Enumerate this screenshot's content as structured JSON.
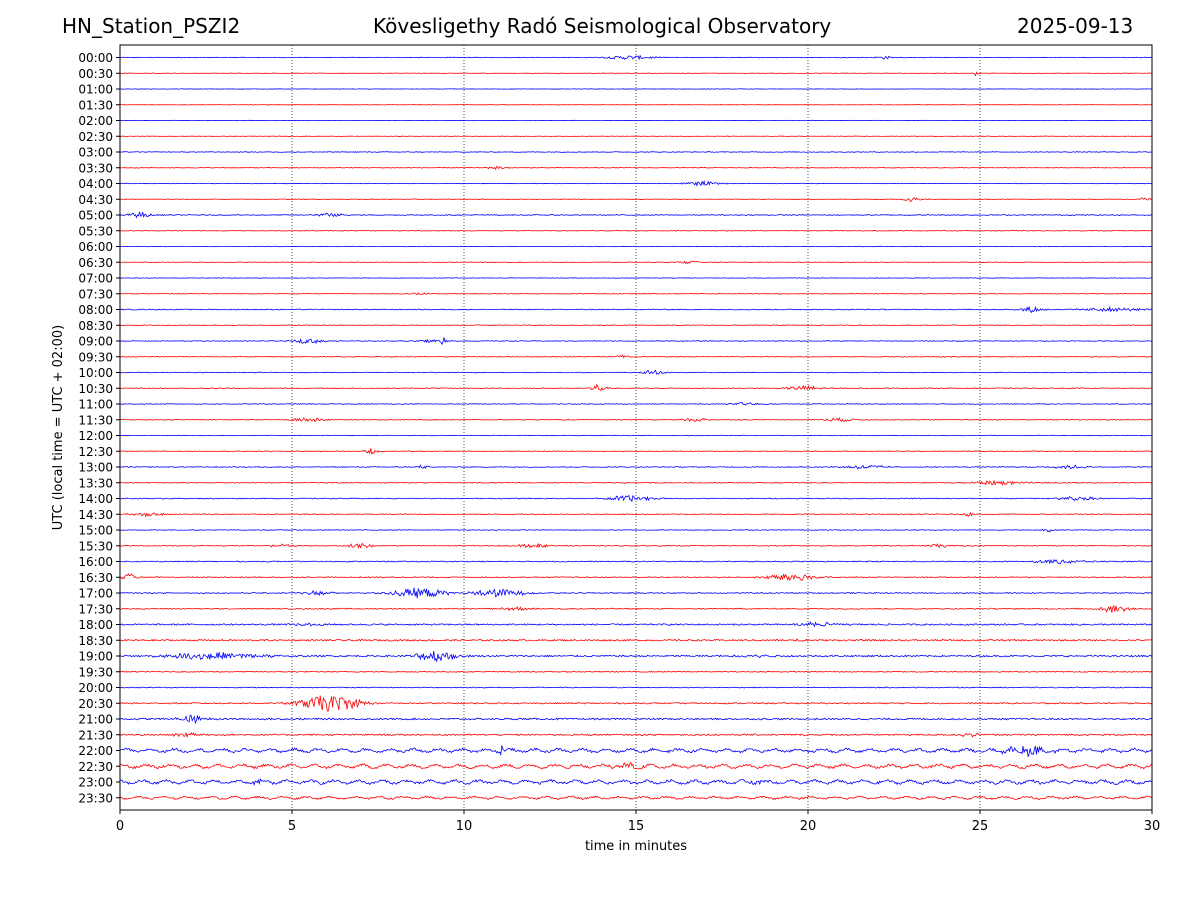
{
  "header": {
    "station": "HN_Station_PSZI2",
    "observatory": "Kövesligethy Radó Seismological Observatory",
    "date": "2025-09-13"
  },
  "chart_data": {
    "type": "line",
    "title": "Kövesligethy Radó Seismological Observatory",
    "xlabel": "time in minutes",
    "ylabel": "UTC (local time = UTC + 02:00)",
    "xlim": [
      0,
      30
    ],
    "x_ticks": [
      "0",
      "5",
      "10",
      "15",
      "20",
      "25",
      "30"
    ],
    "x_tick_values": [
      0,
      5,
      10,
      15,
      20,
      25,
      30
    ],
    "vertical_gridlines_at": [
      5,
      10,
      15,
      20,
      25
    ],
    "grid": "vertical dotted",
    "trace_colors": [
      "#0000ff",
      "#ff0000"
    ],
    "rows": [
      "00:00",
      "00:30",
      "01:00",
      "01:30",
      "02:00",
      "02:30",
      "03:00",
      "03:30",
      "04:00",
      "04:30",
      "05:00",
      "05:30",
      "06:00",
      "06:30",
      "07:00",
      "07:30",
      "08:00",
      "08:30",
      "09:00",
      "09:30",
      "10:00",
      "10:30",
      "11:00",
      "11:30",
      "12:00",
      "12:30",
      "13:00",
      "13:30",
      "14:00",
      "14:30",
      "15:00",
      "15:30",
      "16:00",
      "16:30",
      "17:00",
      "17:30",
      "18:00",
      "18:30",
      "19:00",
      "19:30",
      "20:00",
      "20:30",
      "21:00",
      "21:30",
      "22:00",
      "22:30",
      "23:00",
      "23:30"
    ],
    "noise_level": [
      0.6,
      0.5,
      0.4,
      0.4,
      0.4,
      0.4,
      0.7,
      0.6,
      0.5,
      0.6,
      0.9,
      0.6,
      0.5,
      0.6,
      0.5,
      0.6,
      0.9,
      0.7,
      0.7,
      0.7,
      0.7,
      0.8,
      0.7,
      0.7,
      0.6,
      0.7,
      0.8,
      0.8,
      0.9,
      0.9,
      0.7,
      0.9,
      1.0,
      1.0,
      1.0,
      1.1,
      1.5,
      1.6,
      1.6,
      1.0,
      0.9,
      1.3,
      1.6,
      1.5,
      2.2,
      2.3,
      2.3,
      1.6
    ],
    "events": [
      {
        "row": 0,
        "t": 14.8,
        "dur": 1.2,
        "amp": 2.0
      },
      {
        "row": 0,
        "t": 22.2,
        "dur": 0.5,
        "amp": 1.5
      },
      {
        "row": 1,
        "t": 24.9,
        "dur": 0.1,
        "amp": 3.0
      },
      {
        "row": 7,
        "t": 11.0,
        "dur": 0.5,
        "amp": 2.0
      },
      {
        "row": 8,
        "t": 16.9,
        "dur": 1.0,
        "amp": 2.0
      },
      {
        "row": 9,
        "t": 23.0,
        "dur": 0.4,
        "amp": 2.5
      },
      {
        "row": 9,
        "t": 29.8,
        "dur": 0.3,
        "amp": 2.0
      },
      {
        "row": 10,
        "t": 0.6,
        "dur": 0.6,
        "amp": 3.0
      },
      {
        "row": 10,
        "t": 6.1,
        "dur": 0.7,
        "amp": 2.0
      },
      {
        "row": 13,
        "t": 16.5,
        "dur": 0.5,
        "amp": 1.5
      },
      {
        "row": 15,
        "t": 8.7,
        "dur": 0.4,
        "amp": 1.5
      },
      {
        "row": 16,
        "t": 26.5,
        "dur": 0.6,
        "amp": 3.0
      },
      {
        "row": 16,
        "t": 28.8,
        "dur": 1.5,
        "amp": 2.0
      },
      {
        "row": 18,
        "t": 5.5,
        "dur": 0.8,
        "amp": 2.5
      },
      {
        "row": 18,
        "t": 9.4,
        "dur": 0.1,
        "amp": 7.0
      },
      {
        "row": 18,
        "t": 9.0,
        "dur": 0.8,
        "amp": 1.5
      },
      {
        "row": 19,
        "t": 14.6,
        "dur": 0.4,
        "amp": 2.0
      },
      {
        "row": 20,
        "t": 15.5,
        "dur": 0.7,
        "amp": 2.0
      },
      {
        "row": 21,
        "t": 13.9,
        "dur": 0.4,
        "amp": 4.0
      },
      {
        "row": 21,
        "t": 19.9,
        "dur": 1.0,
        "amp": 2.5
      },
      {
        "row": 22,
        "t": 18.2,
        "dur": 0.7,
        "amp": 1.5
      },
      {
        "row": 23,
        "t": 5.5,
        "dur": 1.0,
        "amp": 2.0
      },
      {
        "row": 23,
        "t": 16.7,
        "dur": 0.6,
        "amp": 2.5
      },
      {
        "row": 23,
        "t": 20.9,
        "dur": 0.7,
        "amp": 2.0
      },
      {
        "row": 25,
        "t": 7.3,
        "dur": 0.4,
        "amp": 3.0
      },
      {
        "row": 26,
        "t": 8.8,
        "dur": 0.3,
        "amp": 1.8
      },
      {
        "row": 26,
        "t": 21.7,
        "dur": 1.0,
        "amp": 2.0
      },
      {
        "row": 26,
        "t": 27.6,
        "dur": 0.8,
        "amp": 2.0
      },
      {
        "row": 27,
        "t": 25.4,
        "dur": 1.5,
        "amp": 2.0
      },
      {
        "row": 28,
        "t": 14.9,
        "dur": 1.3,
        "amp": 3.0
      },
      {
        "row": 28,
        "t": 27.8,
        "dur": 1.0,
        "amp": 2.0
      },
      {
        "row": 29,
        "t": 0.8,
        "dur": 0.8,
        "amp": 2.0
      },
      {
        "row": 29,
        "t": 24.7,
        "dur": 0.3,
        "amp": 2.0
      },
      {
        "row": 30,
        "t": 27.0,
        "dur": 0.3,
        "amp": 2.0
      },
      {
        "row": 31,
        "t": 7.0,
        "dur": 0.7,
        "amp": 3.0
      },
      {
        "row": 31,
        "t": 12.0,
        "dur": 0.8,
        "amp": 2.0
      },
      {
        "row": 31,
        "t": 4.7,
        "dur": 0.6,
        "amp": 1.5
      },
      {
        "row": 31,
        "t": 23.8,
        "dur": 0.8,
        "amp": 1.5
      },
      {
        "row": 32,
        "t": 27.2,
        "dur": 1.5,
        "amp": 2.0
      },
      {
        "row": 33,
        "t": 0.3,
        "dur": 0.5,
        "amp": 3.0
      },
      {
        "row": 33,
        "t": 19.5,
        "dur": 1.3,
        "amp": 4.0
      },
      {
        "row": 34,
        "t": 8.7,
        "dur": 1.4,
        "amp": 5.0
      },
      {
        "row": 34,
        "t": 11.0,
        "dur": 1.3,
        "amp": 4.0
      },
      {
        "row": 34,
        "t": 5.7,
        "dur": 0.8,
        "amp": 2.0
      },
      {
        "row": 35,
        "t": 28.9,
        "dur": 0.8,
        "amp": 3.5
      },
      {
        "row": 35,
        "t": 11.5,
        "dur": 0.7,
        "amp": 2.0
      },
      {
        "row": 36,
        "t": 20.3,
        "dur": 1.0,
        "amp": 2.5
      },
      {
        "row": 36,
        "t": 5.4,
        "dur": 0.8,
        "amp": 1.5
      },
      {
        "row": 37,
        "t": 19.8,
        "dur": 0.3,
        "amp": 2.5
      },
      {
        "row": 38,
        "t": 2.8,
        "dur": 2.5,
        "amp": 3.5
      },
      {
        "row": 38,
        "t": 9.2,
        "dur": 1.0,
        "amp": 6.0
      },
      {
        "row": 38,
        "t": 18.4,
        "dur": 1.0,
        "amp": 2.0
      },
      {
        "row": 41,
        "t": 6.1,
        "dur": 1.6,
        "amp": 8.0
      },
      {
        "row": 42,
        "t": 2.1,
        "dur": 0.8,
        "amp": 3.5
      },
      {
        "row": 43,
        "t": 2.0,
        "dur": 0.8,
        "amp": 2.5
      },
      {
        "row": 43,
        "t": 24.7,
        "dur": 0.5,
        "amp": 2.0
      },
      {
        "row": 44,
        "t": 11.1,
        "dur": 0.05,
        "amp": 14.0
      },
      {
        "row": 44,
        "t": 26.4,
        "dur": 1.2,
        "amp": 5.0
      },
      {
        "row": 45,
        "t": 14.8,
        "dur": 0.8,
        "amp": 3.0
      },
      {
        "row": 46,
        "t": 18.6,
        "dur": 0.4,
        "amp": 3.0
      },
      {
        "row": 46,
        "t": 4.0,
        "dur": 0.4,
        "amp": 2.0
      }
    ]
  }
}
